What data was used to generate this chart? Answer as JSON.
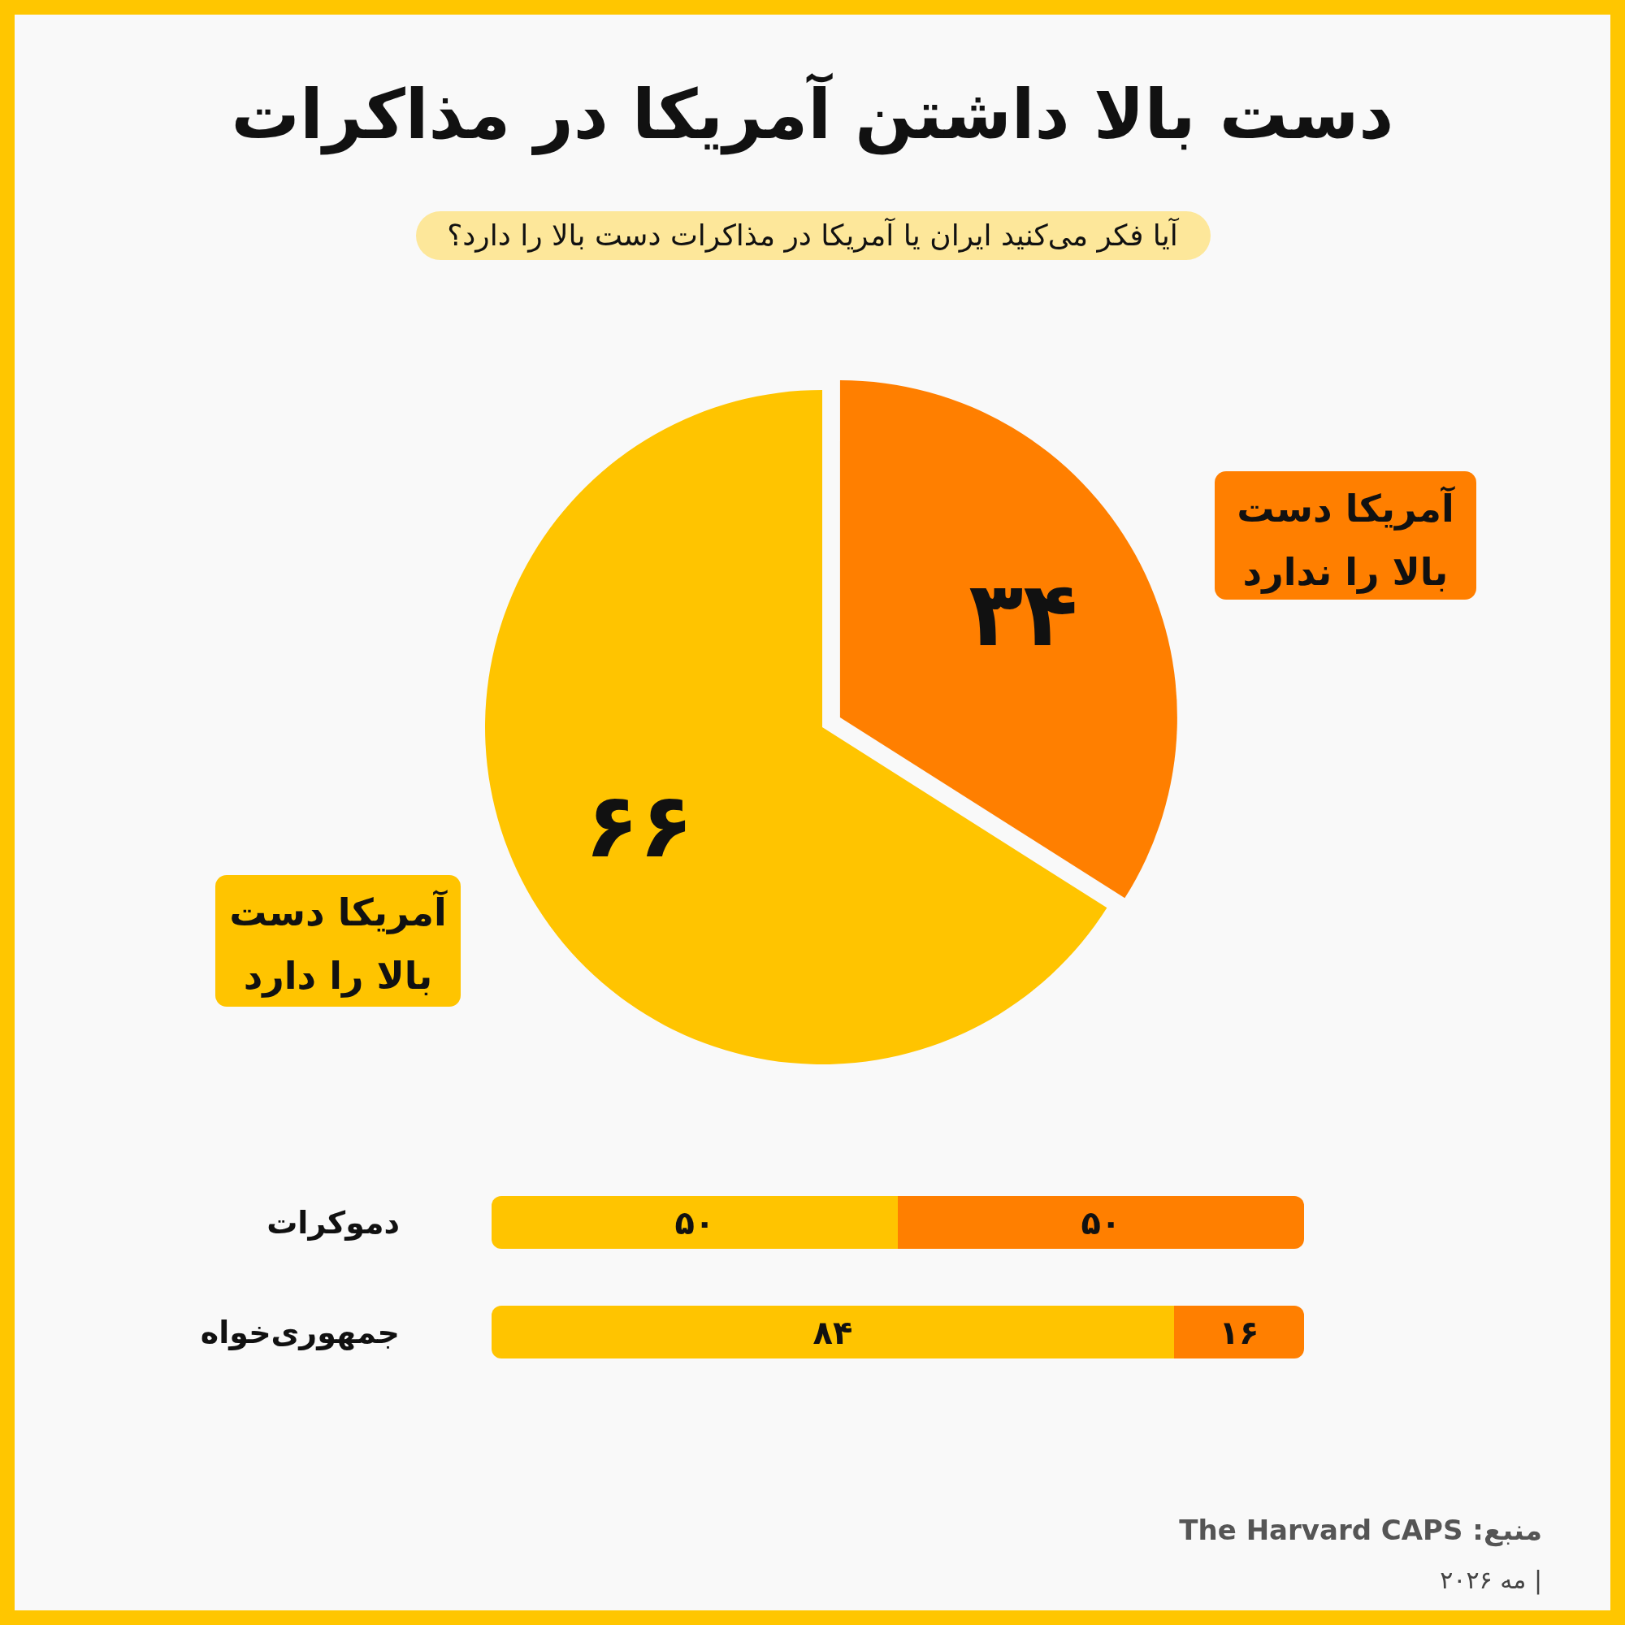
{
  "chart_data": [
    {
      "type": "pie",
      "title": "دست بالا داشتن آمریکا در مذاکرات",
      "subtitle": "آیا فکر می‌کنید ایران یا آمریکا در مذاکرات دست بالا را دارد؟",
      "categories": [
        "آمریکا دست بالا را ندارد",
        "آمریکا دست بالا را دارد"
      ],
      "values": [
        34,
        66
      ],
      "colors": [
        "#ff7f00",
        "#ffc400"
      ],
      "value_labels": [
        "۳۴",
        "۶۶"
      ]
    },
    {
      "type": "bar",
      "stacked": true,
      "orientation": "horizontal",
      "tick_labels": "y",
      "categories": [
        "دموکرات",
        "جمهوری‌خواه"
      ],
      "series": [
        {
          "color": "#ffc400",
          "values": [
            50,
            84
          ],
          "value_labels": [
            "۵۰",
            "۸۴"
          ]
        },
        {
          "color": "#ff7f00",
          "values": [
            50,
            16
          ],
          "value_labels": [
            "۵۰",
            "۱۶"
          ]
        }
      ],
      "annotations": [
        "منبع: The Harvard CAPS",
        "| مه ۲۰۲۶"
      ]
    }
  ]
}
